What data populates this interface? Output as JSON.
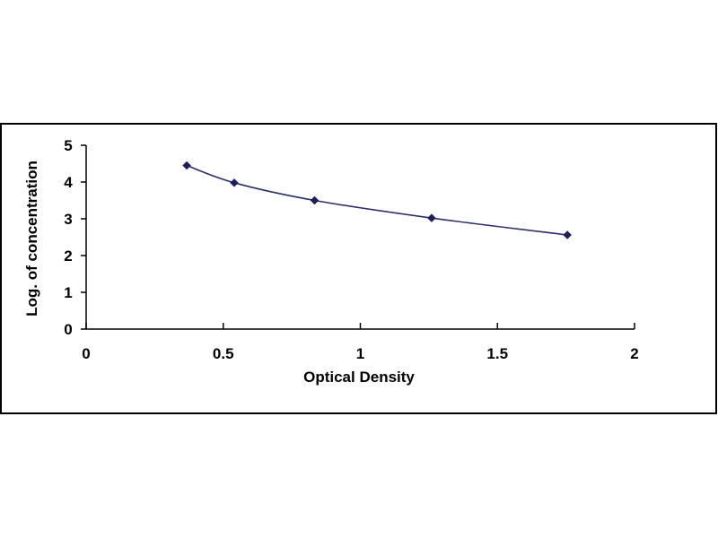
{
  "chart_data": {
    "type": "scatter",
    "title": "",
    "xlabel": "Optical Density",
    "ylabel": "Log. of concentration",
    "xlim": [
      0,
      2
    ],
    "ylim": [
      0,
      5
    ],
    "x_ticks": [
      0,
      0.5,
      1,
      1.5,
      2
    ],
    "x_tick_labels": [
      "0",
      "0.5",
      "1",
      "1.5",
      "2"
    ],
    "y_ticks": [
      0,
      1,
      2,
      3,
      4,
      5
    ],
    "y_tick_labels": [
      "0",
      "1",
      "2",
      "3",
      "4",
      "5"
    ],
    "grid": false,
    "legend": "none",
    "series": [
      {
        "marker": "diamond",
        "color": "#1c1f5c",
        "line": "smooth-trendline",
        "x": [
          0.367,
          0.54,
          0.833,
          1.26,
          1.755
        ],
        "y": [
          4.45,
          3.98,
          3.5,
          3.02,
          2.56
        ]
      }
    ]
  }
}
